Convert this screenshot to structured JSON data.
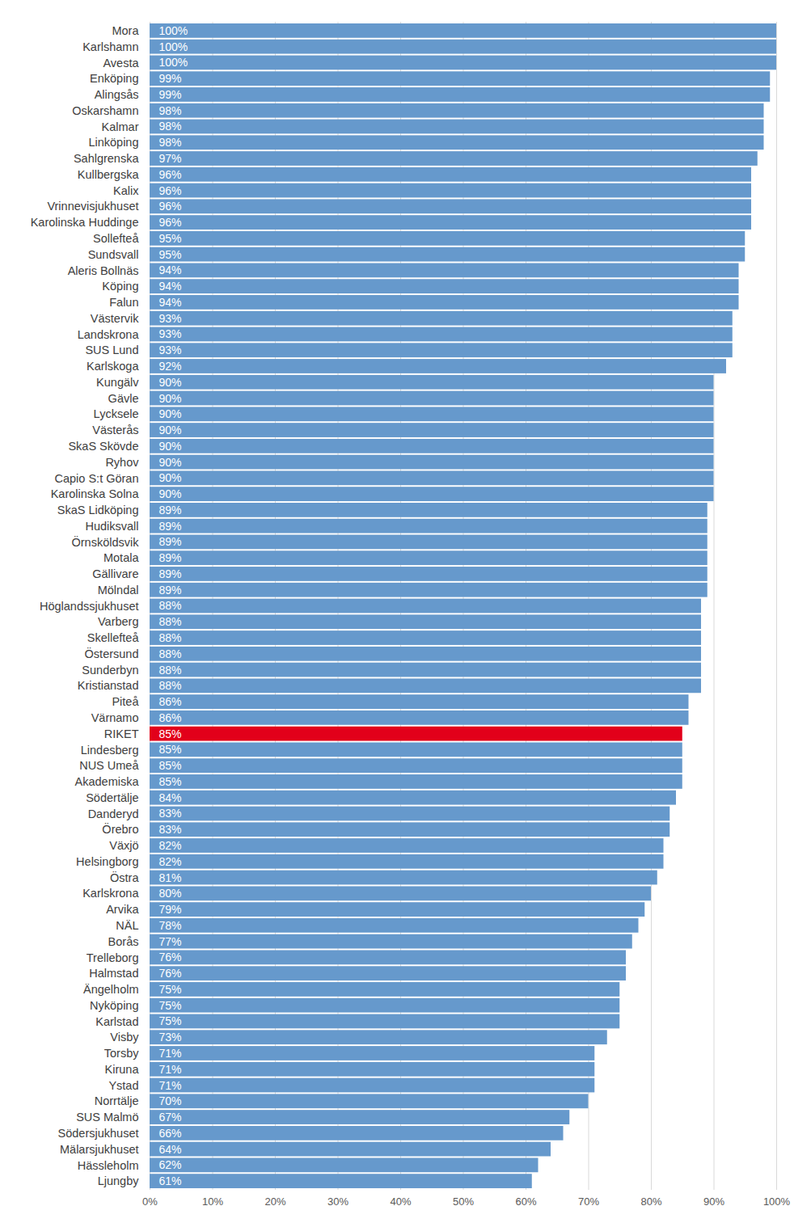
{
  "chart_data": {
    "type": "bar",
    "orientation": "horizontal",
    "categories": [
      "Mora",
      "Karlshamn",
      "Avesta",
      "Enköping",
      "Alingsås",
      "Oskarshamn",
      "Kalmar",
      "Linköping",
      "Sahlgrenska",
      "Kullbergska",
      "Kalix",
      "Vrinnevisjukhuset",
      "Karolinska Huddinge",
      "Sollefteå",
      "Sundsvall",
      "Aleris Bollnäs",
      "Köping",
      "Falun",
      "Västervik",
      "Landskrona",
      "SUS Lund",
      "Karlskoga",
      "Kungälv",
      "Gävle",
      "Lycksele",
      "Västerås",
      "SkaS Skövde",
      "Ryhov",
      "Capio S:t Göran",
      "Karolinska Solna",
      "SkaS Lidköping",
      "Hudiksvall",
      "Örnsköldsvik",
      "Motala",
      "Gällivare",
      "Mölndal",
      "Höglandssjukhuset",
      "Varberg",
      "Skellefteå",
      "Östersund",
      "Sunderbyn",
      "Kristianstad",
      "Piteå",
      "Värnamo",
      "RIKET",
      "Lindesberg",
      "NUS Umeå",
      "Akademiska",
      "Södertälje",
      "Danderyd",
      "Örebro",
      "Växjö",
      "Helsingborg",
      "Östra",
      "Karlskrona",
      "Arvika",
      "NÄL",
      "Borås",
      "Trelleborg",
      "Halmstad",
      "Ängelholm",
      "Nyköping",
      "Karlstad",
      "Visby",
      "Torsby",
      "Kiruna",
      "Ystad",
      "Norrtälje",
      "SUS Malmö",
      "Södersjukhuset",
      "Mälarsjukhuset",
      "Hässleholm",
      "Ljungby"
    ],
    "values": [
      100,
      100,
      100,
      99,
      99,
      98,
      98,
      98,
      97,
      96,
      96,
      96,
      96,
      95,
      95,
      94,
      94,
      94,
      93,
      93,
      93,
      92,
      90,
      90,
      90,
      90,
      90,
      90,
      90,
      90,
      89,
      89,
      89,
      89,
      89,
      89,
      88,
      88,
      88,
      88,
      88,
      88,
      86,
      86,
      85,
      85,
      85,
      85,
      84,
      83,
      83,
      82,
      82,
      81,
      80,
      79,
      78,
      77,
      76,
      76,
      75,
      75,
      75,
      73,
      71,
      71,
      71,
      70,
      67,
      66,
      64,
      62,
      61
    ],
    "value_labels": [
      "100%",
      "100%",
      "100%",
      "99%",
      "99%",
      "98%",
      "98%",
      "98%",
      "97%",
      "96%",
      "96%",
      "96%",
      "96%",
      "95%",
      "95%",
      "94%",
      "94%",
      "94%",
      "93%",
      "93%",
      "93%",
      "92%",
      "90%",
      "90%",
      "90%",
      "90%",
      "90%",
      "90%",
      "90%",
      "90%",
      "89%",
      "89%",
      "89%",
      "89%",
      "89%",
      "89%",
      "88%",
      "88%",
      "88%",
      "88%",
      "88%",
      "88%",
      "86%",
      "86%",
      "85%",
      "85%",
      "85%",
      "85%",
      "84%",
      "83%",
      "83%",
      "82%",
      "82%",
      "81%",
      "80%",
      "79%",
      "78%",
      "77%",
      "76%",
      "76%",
      "75%",
      "75%",
      "75%",
      "73%",
      "71%",
      "71%",
      "71%",
      "70%",
      "67%",
      "66%",
      "64%",
      "62%",
      "61%"
    ],
    "colors": [
      "#6699cc",
      "#6699cc",
      "#6699cc",
      "#6699cc",
      "#6699cc",
      "#6699cc",
      "#6699cc",
      "#6699cc",
      "#6699cc",
      "#6699cc",
      "#6699cc",
      "#6699cc",
      "#6699cc",
      "#6699cc",
      "#6699cc",
      "#6699cc",
      "#6699cc",
      "#6699cc",
      "#6699cc",
      "#6699cc",
      "#6699cc",
      "#6699cc",
      "#6699cc",
      "#6699cc",
      "#6699cc",
      "#6699cc",
      "#6699cc",
      "#6699cc",
      "#6699cc",
      "#6699cc",
      "#6699cc",
      "#6699cc",
      "#6699cc",
      "#6699cc",
      "#6699cc",
      "#6699cc",
      "#6699cc",
      "#6699cc",
      "#6699cc",
      "#6699cc",
      "#6699cc",
      "#6699cc",
      "#6699cc",
      "#6699cc",
      "#e2001a",
      "#6699cc",
      "#6699cc",
      "#6699cc",
      "#6699cc",
      "#6699cc",
      "#6699cc",
      "#6699cc",
      "#6699cc",
      "#6699cc",
      "#6699cc",
      "#6699cc",
      "#6699cc",
      "#6699cc",
      "#6699cc",
      "#6699cc",
      "#6699cc",
      "#6699cc",
      "#6699cc",
      "#6699cc",
      "#6699cc",
      "#6699cc",
      "#6699cc",
      "#6699cc",
      "#6699cc",
      "#6699cc",
      "#6699cc",
      "#6699cc",
      "#6699cc"
    ],
    "xlim": [
      0,
      100
    ],
    "xticks": [
      {
        "value": 0,
        "label": "0%"
      },
      {
        "value": 10,
        "label": "10%"
      },
      {
        "value": 20,
        "label": "20%"
      },
      {
        "value": 30,
        "label": "30%"
      },
      {
        "value": 40,
        "label": "40%"
      },
      {
        "value": 50,
        "label": "50%"
      },
      {
        "value": 60,
        "label": "60%"
      },
      {
        "value": 70,
        "label": "70%"
      },
      {
        "value": 80,
        "label": "80%"
      },
      {
        "value": 90,
        "label": "90%"
      },
      {
        "value": 100,
        "label": "100%"
      }
    ],
    "grid": true,
    "data_labels": true
  }
}
